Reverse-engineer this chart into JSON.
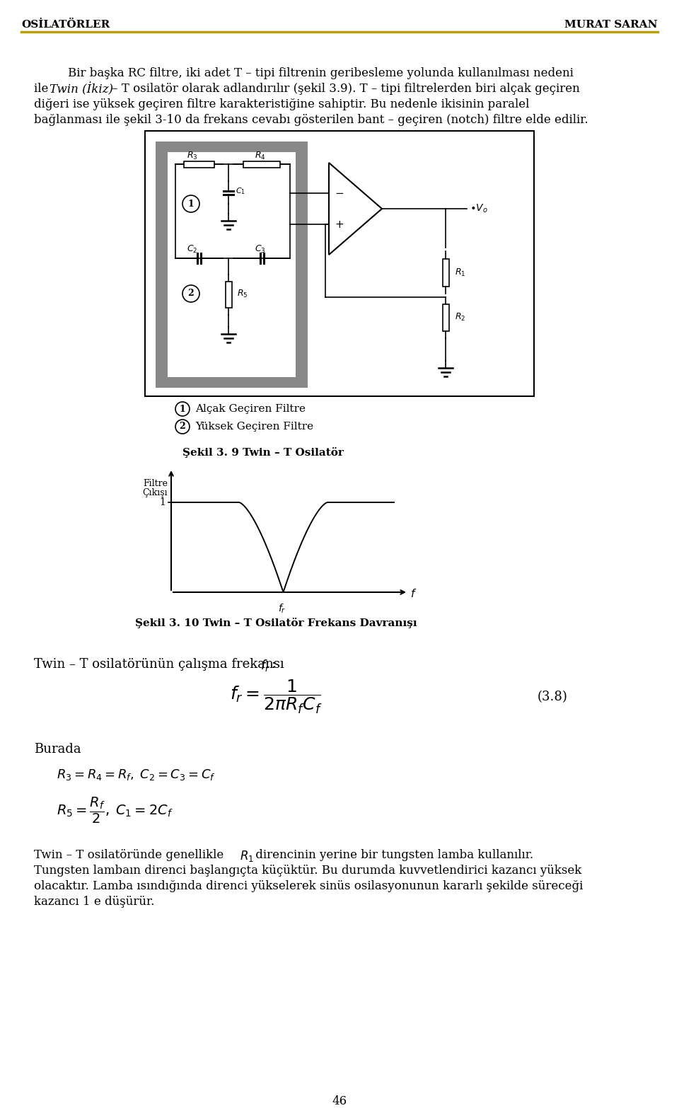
{
  "page_title_left": "OSİLATÖRLER",
  "page_title_right": "MURAT SARAN",
  "page_number": "46",
  "figure_caption_1": "Şekil 3. 9 Twin – T Osilatör",
  "figure_caption_2": "Şekil 3. 10 Twin – T Osilatör Frekans Davranışı",
  "legend_1": "Alçak Geçiren Filtre",
  "legend_2": "Yüksek Geçiren Filtre",
  "filtre_line1": "Filtre",
  "filtre_line2": "Çıkışı",
  "notch_ylabel": "1",
  "formula_label": "(3.8)",
  "burada_label": "Burada",
  "bg_color": "#ffffff",
  "text_color": "#000000",
  "header_line_color": "#b8a000"
}
